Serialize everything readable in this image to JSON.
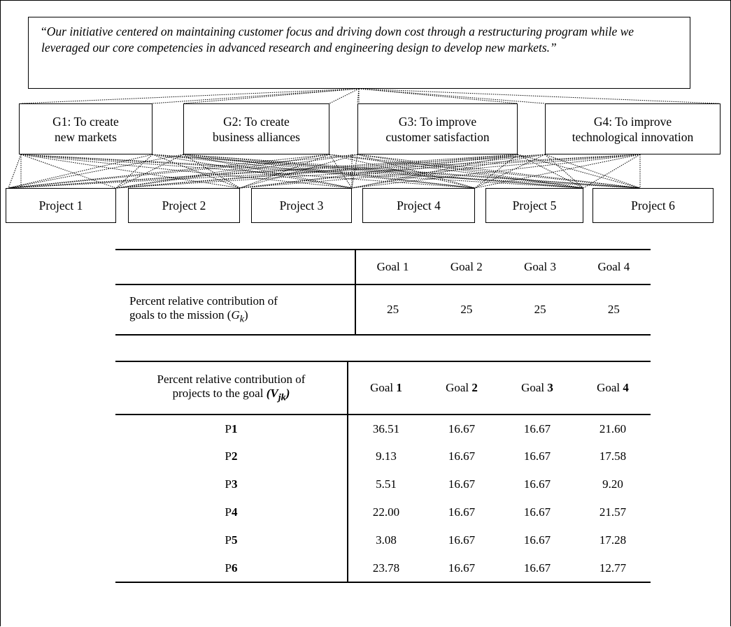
{
  "mission": {
    "open_quote": "“",
    "text": "Our initiative centered on maintaining customer focus and driving down cost through a restructuring program while we leveraged our core competencies in advanced research and engineering design to develop new markets.",
    "close_quote": "”"
  },
  "goals": [
    {
      "line1": "G1: To create",
      "line2": "new markets"
    },
    {
      "line1": "G2: To create",
      "line2": "business alliances"
    },
    {
      "line1": "G3: To improve",
      "line2": "customer satisfaction"
    },
    {
      "line1": "G4: To improve",
      "line2": "technological innovation"
    }
  ],
  "projects": [
    "Project 1",
    "Project 2",
    "Project 3",
    "Project 4",
    "Project 5",
    "Project 6"
  ],
  "table1": {
    "headers": [
      "Goal 1",
      "Goal 2",
      "Goal 3",
      "Goal 4"
    ],
    "row_label_line1": "Percent relative contribution of",
    "row_label_line2": "goals to the mission (",
    "row_label_symbol": "G",
    "row_label_sub": "k",
    "row_label_close": ")",
    "values": [
      "25",
      "25",
      "25",
      "25"
    ]
  },
  "table2": {
    "label_line1": "Percent relative contribution of",
    "label_line2": "projects to the goal ",
    "label_symbol_open": "(",
    "label_symbol": "V",
    "label_sub": "jk",
    "label_symbol_close": ")",
    "header_prefix": "Goal ",
    "header_numbers": [
      "1",
      "2",
      "3",
      "4"
    ],
    "row_prefix": "P",
    "rows": [
      {
        "num": "1",
        "values": [
          "36.51",
          "16.67",
          "16.67",
          "21.60"
        ]
      },
      {
        "num": "2",
        "values": [
          "9.13",
          "16.67",
          "16.67",
          "17.58"
        ]
      },
      {
        "num": "3",
        "values": [
          "5.51",
          "16.67",
          "16.67",
          "9.20"
        ]
      },
      {
        "num": "4",
        "values": [
          "22.00",
          "16.67",
          "16.67",
          "21.57"
        ]
      },
      {
        "num": "5",
        "values": [
          "3.08",
          "16.67",
          "16.67",
          "17.28"
        ]
      },
      {
        "num": "6",
        "values": [
          "23.78",
          "16.67",
          "16.67",
          "12.77"
        ]
      }
    ]
  }
}
